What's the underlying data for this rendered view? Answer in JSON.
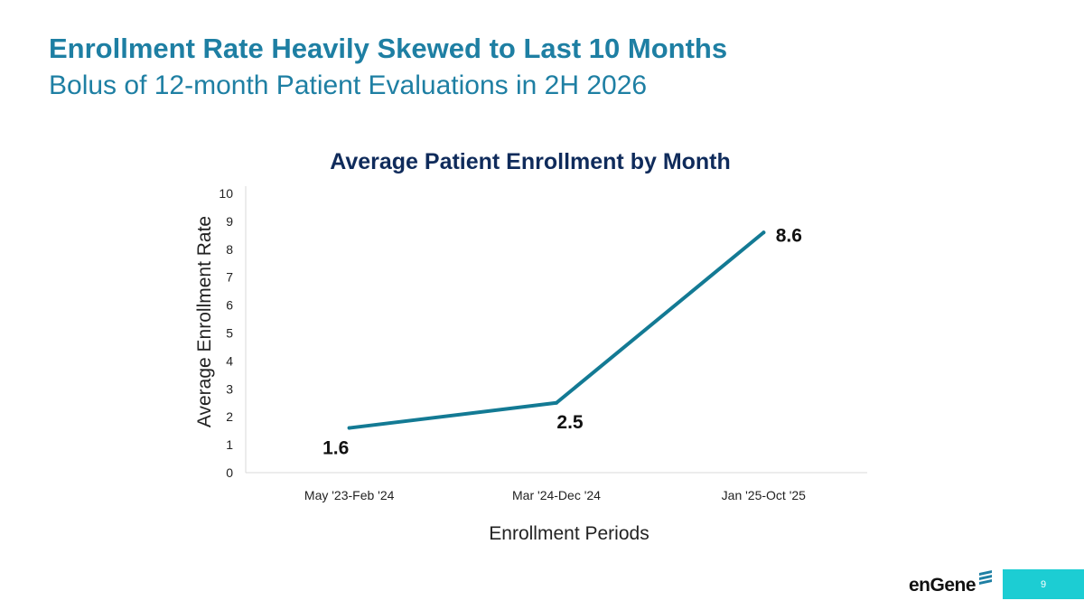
{
  "slide": {
    "title": "Enrollment Rate Heavily Skewed to Last 10 Months",
    "subtitle": "Bolus of 12-month Patient Evaluations in 2H 2026",
    "page_number": "9",
    "logo_text": "enGene",
    "accent_color": "#1e7fa3",
    "page_box_color": "#1ccdd3"
  },
  "chart_data": {
    "type": "line",
    "title": "Average Patient Enrollment by Month",
    "xlabel": "Enrollment Periods",
    "ylabel": "Average Enrollment Rate",
    "categories": [
      "May '23-Feb '24",
      "Mar '24-Dec '24",
      "Jan '25-Oct '25"
    ],
    "series": [
      {
        "values": [
          1.6,
          2.5,
          8.6
        ],
        "color": "#137a94"
      }
    ],
    "data_labels": [
      "1.6",
      "2.5",
      "8.6"
    ],
    "ylim": [
      0,
      10
    ],
    "yticks": [
      0,
      1,
      2,
      3,
      4,
      5,
      6,
      7,
      8,
      9,
      10
    ],
    "grid": false,
    "legend": "none"
  }
}
